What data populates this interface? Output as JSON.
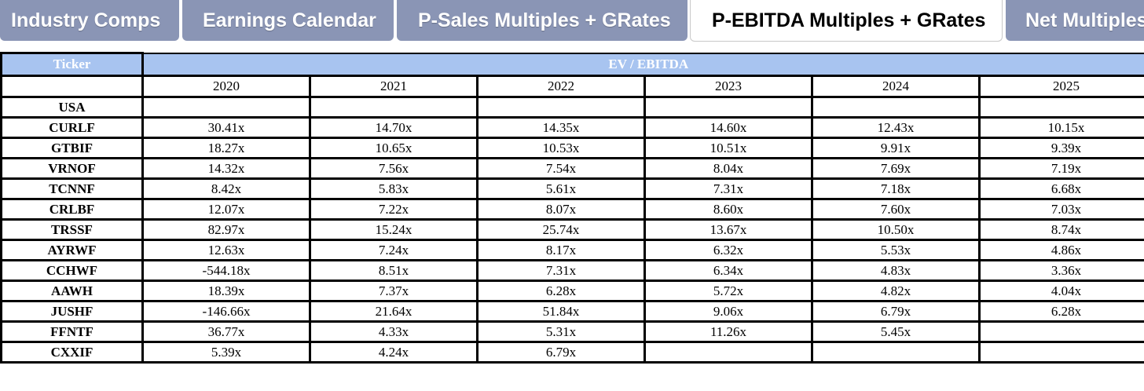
{
  "tabs": [
    {
      "label": "Industry Comps",
      "active": false
    },
    {
      "label": "Earnings Calendar",
      "active": false
    },
    {
      "label": "P-Sales Multiples + GRates",
      "active": false
    },
    {
      "label": "P-EBITDA Multiples + GRates",
      "active": true
    },
    {
      "label": "Net Multiples",
      "active": false
    }
  ],
  "colors": {
    "inactive_tab": "#8a95b5",
    "header_fill": "#a8c4f0"
  },
  "table": {
    "ticker_header": "Ticker",
    "group_header": "EV / EBITDA",
    "years": [
      "2020",
      "2021",
      "2022",
      "2023",
      "2024",
      "2025"
    ],
    "rows": [
      {
        "ticker": "USA",
        "values": [
          "",
          "",
          "",
          "",
          "",
          ""
        ]
      },
      {
        "ticker": "CURLF",
        "values": [
          "30.41x",
          "14.70x",
          "14.35x",
          "14.60x",
          "12.43x",
          "10.15x"
        ]
      },
      {
        "ticker": "GTBIF",
        "values": [
          "18.27x",
          "10.65x",
          "10.53x",
          "10.51x",
          "9.91x",
          "9.39x"
        ]
      },
      {
        "ticker": "VRNOF",
        "values": [
          "14.32x",
          "7.56x",
          "7.54x",
          "8.04x",
          "7.69x",
          "7.19x"
        ]
      },
      {
        "ticker": "TCNNF",
        "values": [
          "8.42x",
          "5.83x",
          "5.61x",
          "7.31x",
          "7.18x",
          "6.68x"
        ]
      },
      {
        "ticker": "CRLBF",
        "values": [
          "12.07x",
          "7.22x",
          "8.07x",
          "8.60x",
          "7.60x",
          "7.03x"
        ]
      },
      {
        "ticker": "TRSSF",
        "values": [
          "82.97x",
          "15.24x",
          "25.74x",
          "13.67x",
          "10.50x",
          "8.74x"
        ]
      },
      {
        "ticker": "AYRWF",
        "values": [
          "12.63x",
          "7.24x",
          "8.17x",
          "6.32x",
          "5.53x",
          "4.86x"
        ]
      },
      {
        "ticker": "CCHWF",
        "values": [
          "-544.18x",
          "8.51x",
          "7.31x",
          "6.34x",
          "4.83x",
          "3.36x"
        ]
      },
      {
        "ticker": "AAWH",
        "values": [
          "18.39x",
          "7.37x",
          "6.28x",
          "5.72x",
          "4.82x",
          "4.04x"
        ]
      },
      {
        "ticker": "JUSHF",
        "values": [
          "-146.66x",
          "21.64x",
          "51.84x",
          "9.06x",
          "6.79x",
          "6.28x"
        ]
      },
      {
        "ticker": "FFNTF",
        "values": [
          "36.77x",
          "4.33x",
          "5.31x",
          "11.26x",
          "5.45x",
          ""
        ]
      },
      {
        "ticker": "CXXIF",
        "values": [
          "5.39x",
          "4.24x",
          "6.79x",
          "",
          "",
          ""
        ]
      }
    ]
  }
}
